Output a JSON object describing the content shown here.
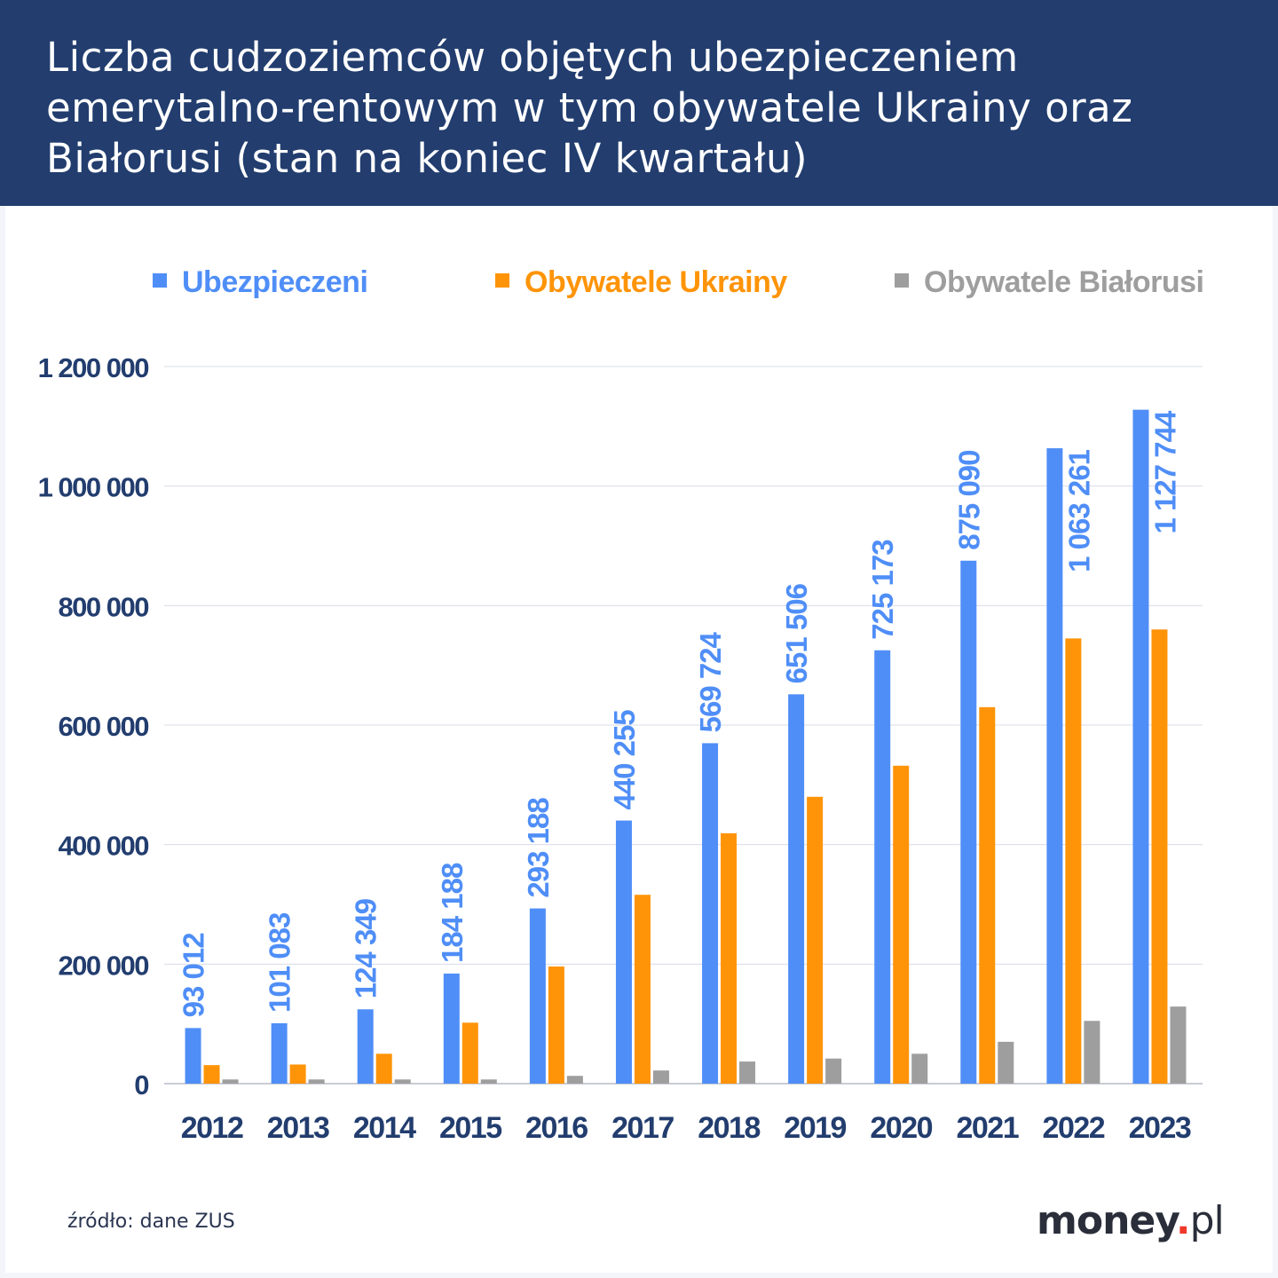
{
  "title": "Liczba cudzoziemców objętych ubezpieczeniem emerytalno-rentowym w tym obywatele Ukrainy oraz Białorusi (stan na koniec IV kwartału)",
  "source": "źródło: dane ZUS",
  "logo": {
    "main": "money",
    "dot": ".",
    "suffix": "pl"
  },
  "chart_data": {
    "type": "bar",
    "title": "Liczba cudzoziemców objętych ubezpieczeniem emerytalno-rentowym w tym obywatele Ukrainy oraz Białorusi (stan na koniec IV kwartału)",
    "categories": [
      "2012",
      "2013",
      "2014",
      "2015",
      "2016",
      "2017",
      "2018",
      "2019",
      "2020",
      "2021",
      "2022",
      "2023"
    ],
    "series": [
      {
        "name": "Ubezpieczeni",
        "color": "#4f8ef7",
        "values": [
          93012,
          101083,
          124349,
          184188,
          293188,
          440255,
          569724,
          651506,
          725173,
          875090,
          1063261,
          1127744
        ],
        "labels": [
          "93 012",
          "101 083",
          "124 349",
          "184 188",
          "293 188",
          "440 255",
          "569 724",
          "651 506",
          "725 173",
          "875 090",
          "1 063 261",
          "1 127 744"
        ]
      },
      {
        "name": "Obywatele Ukrainy",
        "color": "#ff9408",
        "values": [
          31000,
          32000,
          50000,
          102000,
          196000,
          316000,
          419000,
          480000,
          532000,
          630000,
          745000,
          760000
        ]
      },
      {
        "name": "Obywatele Białorusi",
        "color": "#9e9e9e",
        "values": [
          7000,
          7000,
          7000,
          7000,
          13000,
          22000,
          37000,
          42000,
          50000,
          70000,
          105000,
          129000
        ]
      }
    ],
    "ylim": [
      0,
      1200000
    ],
    "yticks": [
      0,
      200000,
      400000,
      600000,
      800000,
      1000000,
      1200000
    ],
    "ytick_labels": [
      "0",
      "200 000",
      "400 000",
      "600 000",
      "800 000",
      "1 000 000",
      "1 200 000"
    ],
    "grid": true,
    "legend": "top",
    "label_color": "#4f8ef7",
    "axis_label_color": "#223d6e"
  }
}
